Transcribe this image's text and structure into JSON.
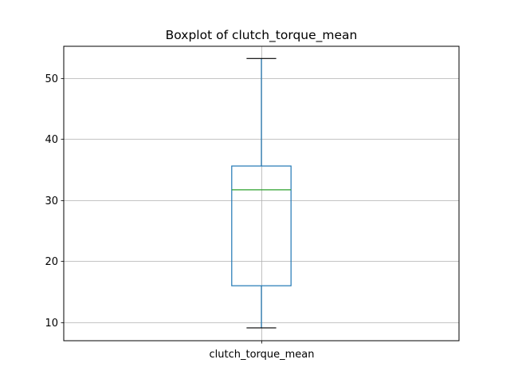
{
  "chart_data": {
    "type": "box",
    "title": "Boxplot of clutch_torque_mean",
    "xlabel": "",
    "ylabel": "",
    "categories": [
      "clutch_torque_mean"
    ],
    "series": [
      {
        "name": "clutch_torque_mean",
        "whisker_low": 9.1,
        "q1": 16.0,
        "median": 31.7,
        "q3": 35.6,
        "whisker_high": 53.2
      }
    ],
    "ylim": [
      7.0,
      55.2
    ],
    "yticks": [
      10,
      20,
      30,
      40,
      50
    ],
    "grid": true,
    "colors": {
      "box": "#1f77b4",
      "whisker": "#1f77b4",
      "cap": "#000000",
      "median": "#2ca02c",
      "grid": "#b0b0b0",
      "axes": "#000000"
    }
  }
}
